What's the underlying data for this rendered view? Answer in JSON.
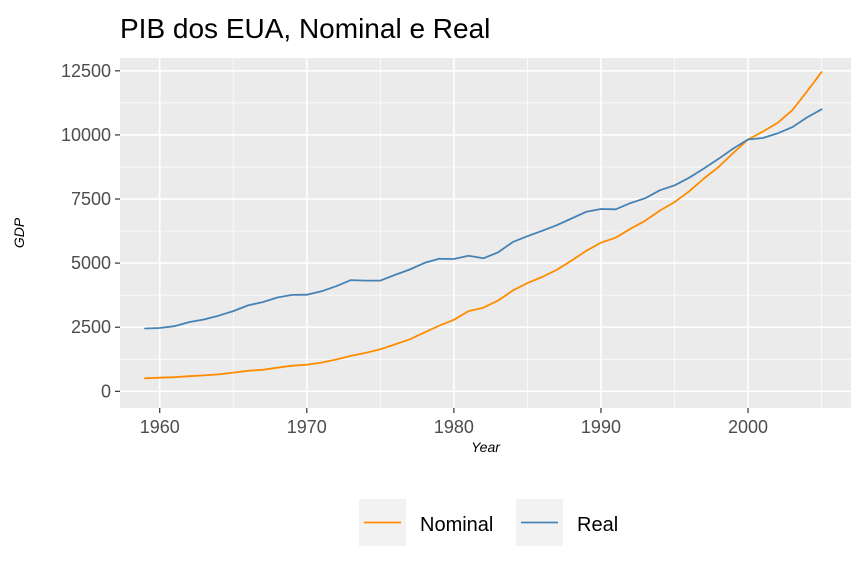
{
  "chart_data": {
    "type": "line",
    "title": "PIB dos EUA, Nominal e Real",
    "xlabel": "Year",
    "ylabel": "GDP",
    "xlim": [
      1957.3,
      2007
    ],
    "ylim": [
      -650,
      13000
    ],
    "x_ticks": [
      1960,
      1970,
      1980,
      1990,
      2000
    ],
    "x_tick_labels": [
      "1960",
      "1970",
      "1980",
      "1990",
      "2000"
    ],
    "y_ticks": [
      0,
      2500,
      5000,
      7500,
      10000,
      12500
    ],
    "y_tick_labels": [
      "0",
      "2500",
      "5000",
      "7500",
      "10000",
      "12500"
    ],
    "grid": true,
    "legend_position": "bottom",
    "x": [
      1959,
      1960,
      1961,
      1962,
      1963,
      1964,
      1965,
      1966,
      1967,
      1968,
      1969,
      1970,
      1971,
      1972,
      1973,
      1974,
      1975,
      1976,
      1977,
      1978,
      1979,
      1980,
      1981,
      1982,
      1983,
      1984,
      1985,
      1986,
      1987,
      1988,
      1989,
      1990,
      1991,
      1992,
      1993,
      1994,
      1995,
      1996,
      1997,
      1998,
      1999,
      2000,
      2001,
      2002,
      2003,
      2004,
      2005
    ],
    "series": [
      {
        "name": "Nominal",
        "color": "#ff8c00",
        "values": [
          510,
          530,
          550,
          590,
          620,
          660,
          730,
          800,
          840,
          920,
          1000,
          1040,
          1120,
          1240,
          1380,
          1500,
          1640,
          1830,
          2030,
          2300,
          2560,
          2790,
          3130,
          3260,
          3540,
          3930,
          4220,
          4460,
          4740,
          5100,
          5480,
          5800,
          5990,
          6340,
          6650,
          7050,
          7380,
          7800,
          8300,
          8750,
          9300,
          9820,
          10130,
          10470,
          10960,
          11690,
          12450
        ]
      },
      {
        "name": "Real",
        "color": "#4682b4",
        "values": [
          2450,
          2470,
          2540,
          2700,
          2800,
          2950,
          3130,
          3350,
          3480,
          3660,
          3760,
          3770,
          3900,
          4100,
          4340,
          4320,
          4320,
          4540,
          4750,
          5010,
          5170,
          5160,
          5290,
          5190,
          5420,
          5820,
          6050,
          6260,
          6480,
          6740,
          7000,
          7110,
          7100,
          7340,
          7530,
          7840,
          8030,
          8330,
          8690,
          9070,
          9470,
          9820,
          9880,
          10060,
          10300,
          10680,
          11000
        ]
      }
    ]
  }
}
